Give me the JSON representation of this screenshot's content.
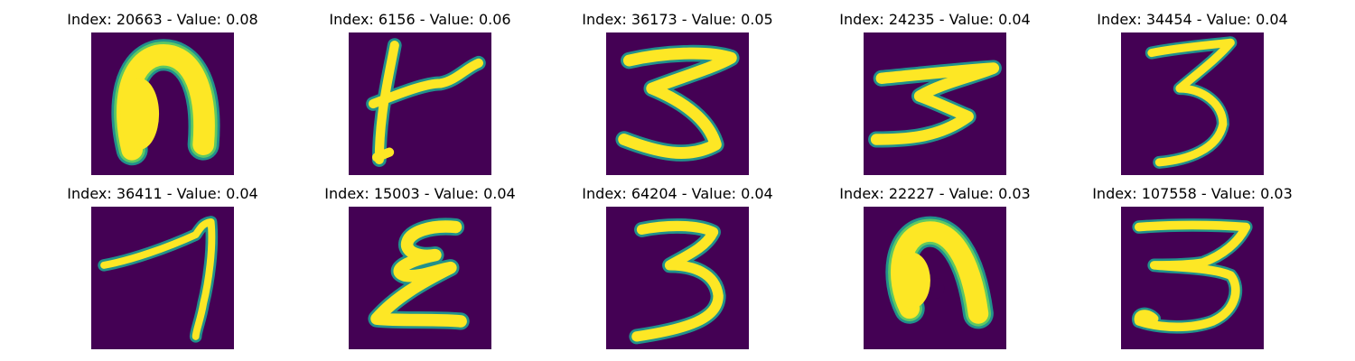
{
  "colors": {
    "background": "#440154",
    "stroke_outer": "#21918c",
    "stroke_mid": "#5ec962",
    "stroke_core": "#fde725"
  },
  "images": [
    {
      "index": "20663",
      "value": "0.08",
      "title": "Index: 20663 - Value: 0.08",
      "shape": "arch-thick"
    },
    {
      "index": "6156",
      "value": "0.06",
      "title": "Index: 6156 - Value: 0.06",
      "shape": "t-shape"
    },
    {
      "index": "36173",
      "value": "0.05",
      "title": "Index: 36173 - Value: 0.05",
      "shape": "wide-three"
    },
    {
      "index": "24235",
      "value": "0.04",
      "title": "Index: 24235 - Value: 0.04",
      "shape": "flat-three"
    },
    {
      "index": "34454",
      "value": "0.04",
      "title": "Index: 34454 - Value: 0.04",
      "shape": "three"
    },
    {
      "index": "36411",
      "value": "0.04",
      "title": "Index: 36411 - Value: 0.04",
      "shape": "seven"
    },
    {
      "index": "15003",
      "value": "0.04",
      "title": "Index: 15003 - Value: 0.04",
      "shape": "epsilon"
    },
    {
      "index": "64204",
      "value": "0.04",
      "title": "Index: 64204 - Value: 0.04",
      "shape": "three-b"
    },
    {
      "index": "22227",
      "value": "0.03",
      "title": "Index: 22227 - Value: 0.03",
      "shape": "arch-blob"
    },
    {
      "index": "107558",
      "value": "0.03",
      "title": "Index: 107558 - Value: 0.03",
      "shape": "three-loop"
    }
  ]
}
